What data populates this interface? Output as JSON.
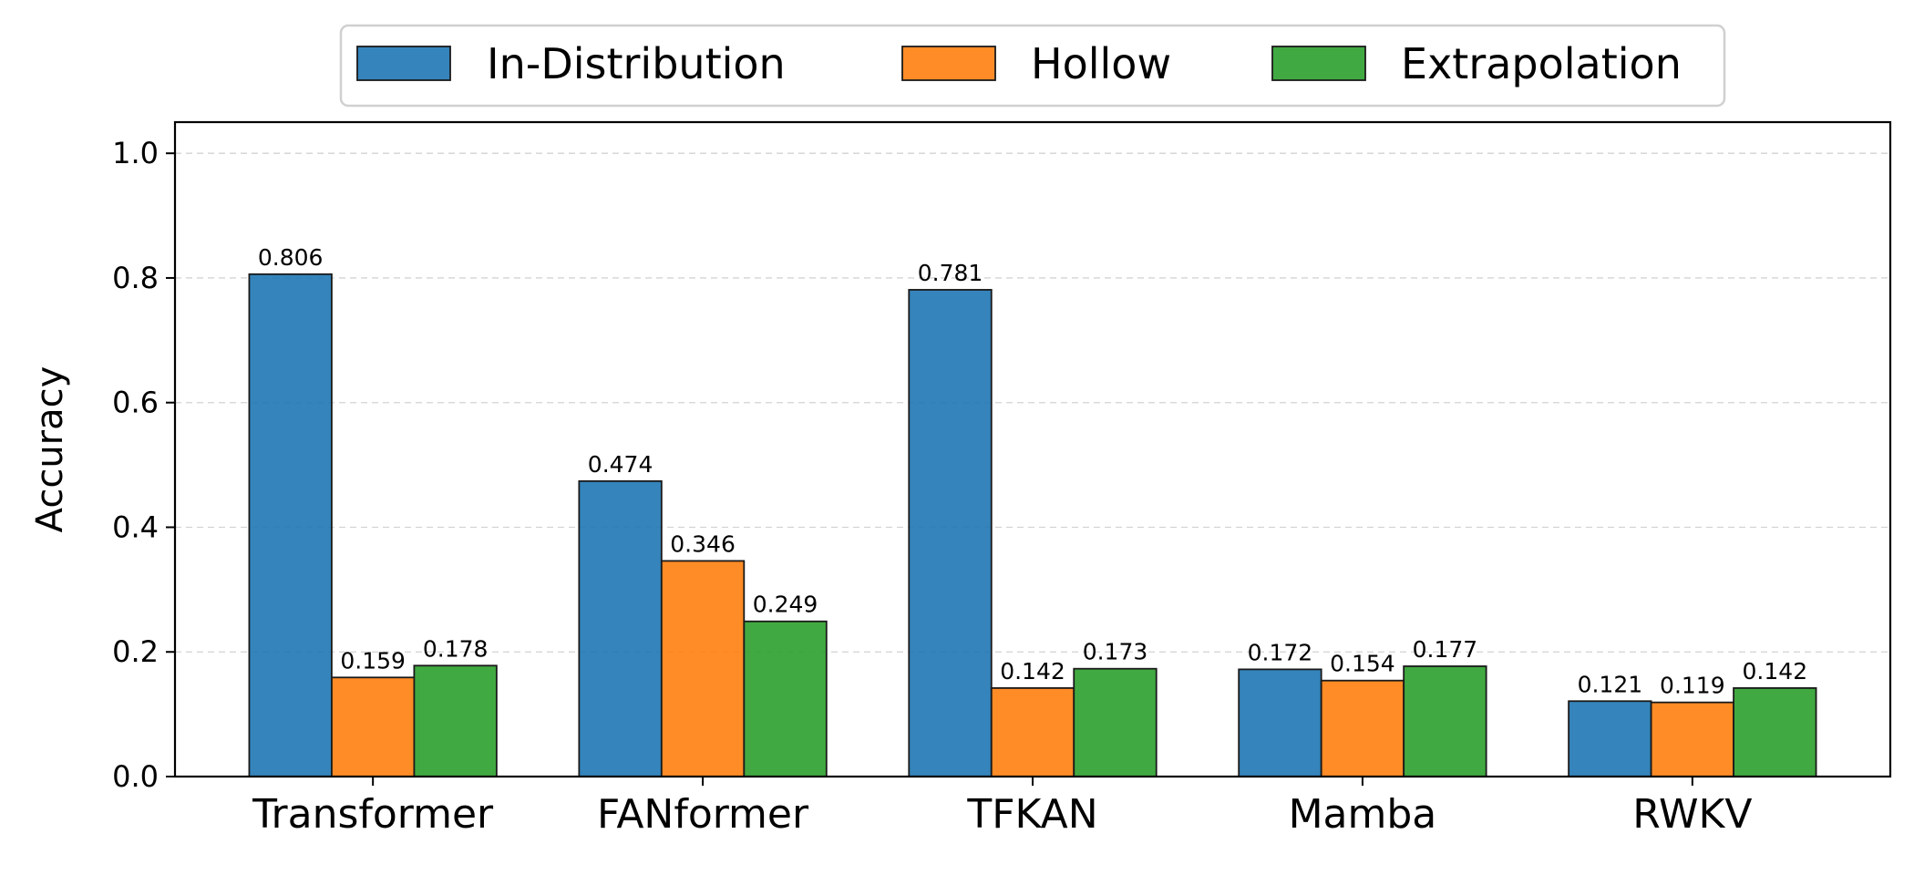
{
  "chart_data": {
    "type": "bar",
    "title": "",
    "xlabel": "",
    "ylabel": "Accuracy",
    "ylim": [
      0,
      1.05
    ],
    "yticks": [
      0.0,
      0.2,
      0.4,
      0.6,
      0.8,
      1.0
    ],
    "ytick_labels": [
      "0.0",
      "0.2",
      "0.4",
      "0.6",
      "0.8",
      "1.0"
    ],
    "grid": "horizontal dashed",
    "legend_position": "top-center",
    "categories": [
      "Transformer",
      "FANformer",
      "TFKAN",
      "Mamba",
      "RWKV"
    ],
    "series": [
      {
        "name": "In-Distribution",
        "color": "#1f77b4",
        "values": [
          0.806,
          0.474,
          0.781,
          0.172,
          0.121
        ],
        "labels": [
          "0.806",
          "0.474",
          "0.781",
          "0.172",
          "0.121"
        ]
      },
      {
        "name": "Hollow",
        "color": "#ff7f0e",
        "values": [
          0.159,
          0.346,
          0.142,
          0.154,
          0.119
        ],
        "labels": [
          "0.159",
          "0.346",
          "0.142",
          "0.154",
          "0.119"
        ]
      },
      {
        "name": "Extrapolation",
        "color": "#2ca02c",
        "values": [
          0.178,
          0.249,
          0.173,
          0.177,
          0.142
        ],
        "labels": [
          "0.178",
          "0.249",
          "0.173",
          "0.177",
          "0.142"
        ]
      }
    ]
  }
}
